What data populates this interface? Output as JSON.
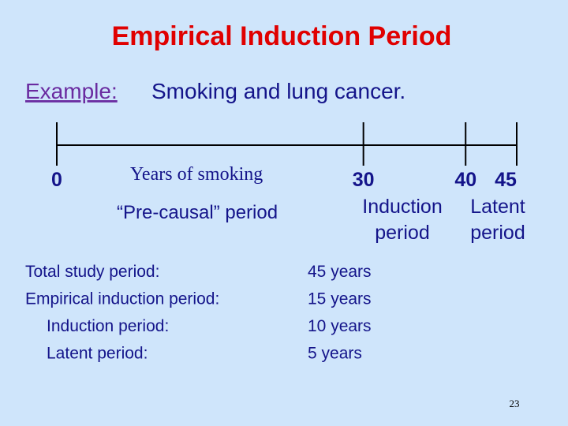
{
  "title": "Empirical Induction Period",
  "example": {
    "label": "Example:",
    "text": "Smoking and lung cancer."
  },
  "timeline": {
    "ticks": [
      0,
      30,
      40,
      45
    ],
    "segment_labels": [
      "Years of smoking",
      "“Pre-causal” period"
    ],
    "period_labels": [
      [
        "Induction",
        "period"
      ],
      [
        "Latent",
        "period"
      ]
    ]
  },
  "summary": {
    "rows": [
      [
        "Total study period:",
        "45 years"
      ],
      [
        "Empirical induction period:",
        "15 years"
      ],
      [
        "Induction period:",
        "10 years"
      ],
      [
        "Latent period:",
        "5 years"
      ]
    ]
  },
  "page_number": "23"
}
